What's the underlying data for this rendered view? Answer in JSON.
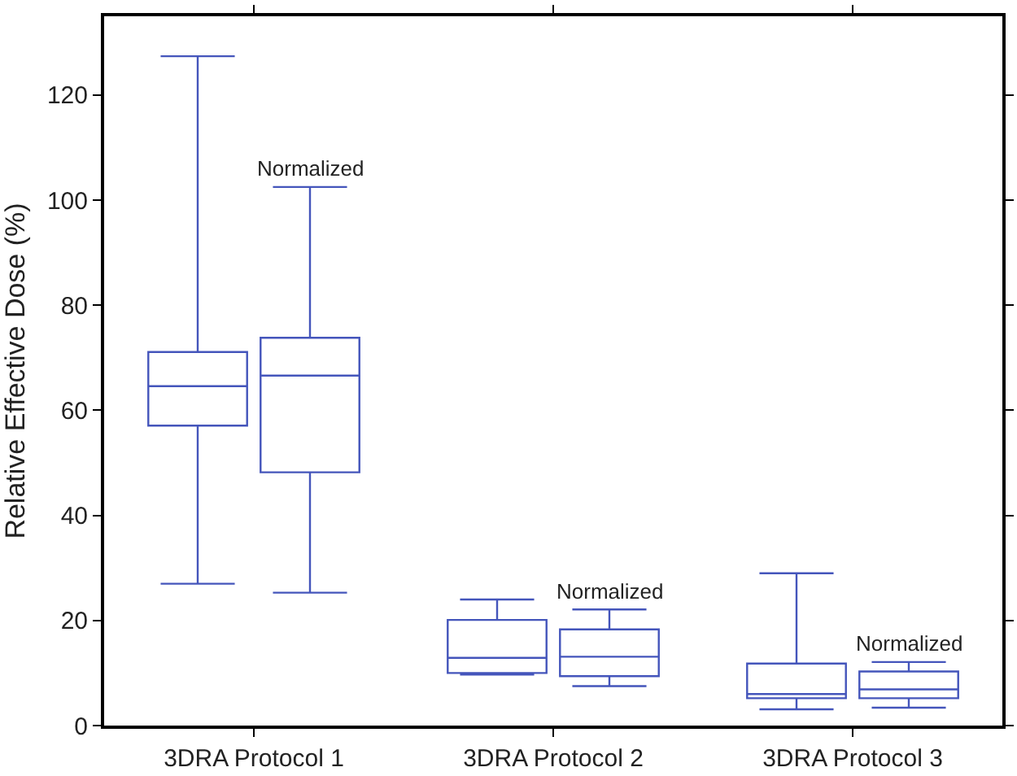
{
  "chart_data": {
    "type": "box",
    "ylabel": "Relative Effective Dose (%)",
    "categories": [
      "3DRA Protocol 1",
      "3DRA Protocol 2",
      "3DRA Protocol 3"
    ],
    "ylim": [
      0,
      135
    ],
    "yticks": [
      0,
      20,
      40,
      60,
      80,
      100,
      120
    ],
    "legend": false,
    "series": [
      {
        "color": "#4455bb",
        "boxes": [
          {
            "low": 27,
            "q1": 57.1,
            "median": 64.6,
            "q3": 71.1,
            "high": 127.4
          },
          {
            "low": 9.7,
            "q1": 10,
            "median": 12.9,
            "q3": 20.1,
            "high": 24
          },
          {
            "low": 3.1,
            "q1": 5.2,
            "median": 6,
            "q3": 11.8,
            "high": 29
          }
        ]
      },
      {
        "name": "Normalized",
        "color": "#4455bb",
        "boxes": [
          {
            "low": 25.3,
            "q1": 48.2,
            "median": 66.6,
            "q3": 73.8,
            "high": 102.5
          },
          {
            "low": 7.5,
            "q1": 9.4,
            "median": 13.1,
            "q3": 18.3,
            "high": 22.1
          },
          {
            "low": 3.4,
            "q1": 5.2,
            "median": 6.9,
            "q3": 10.3,
            "high": 12.1
          }
        ]
      }
    ]
  }
}
